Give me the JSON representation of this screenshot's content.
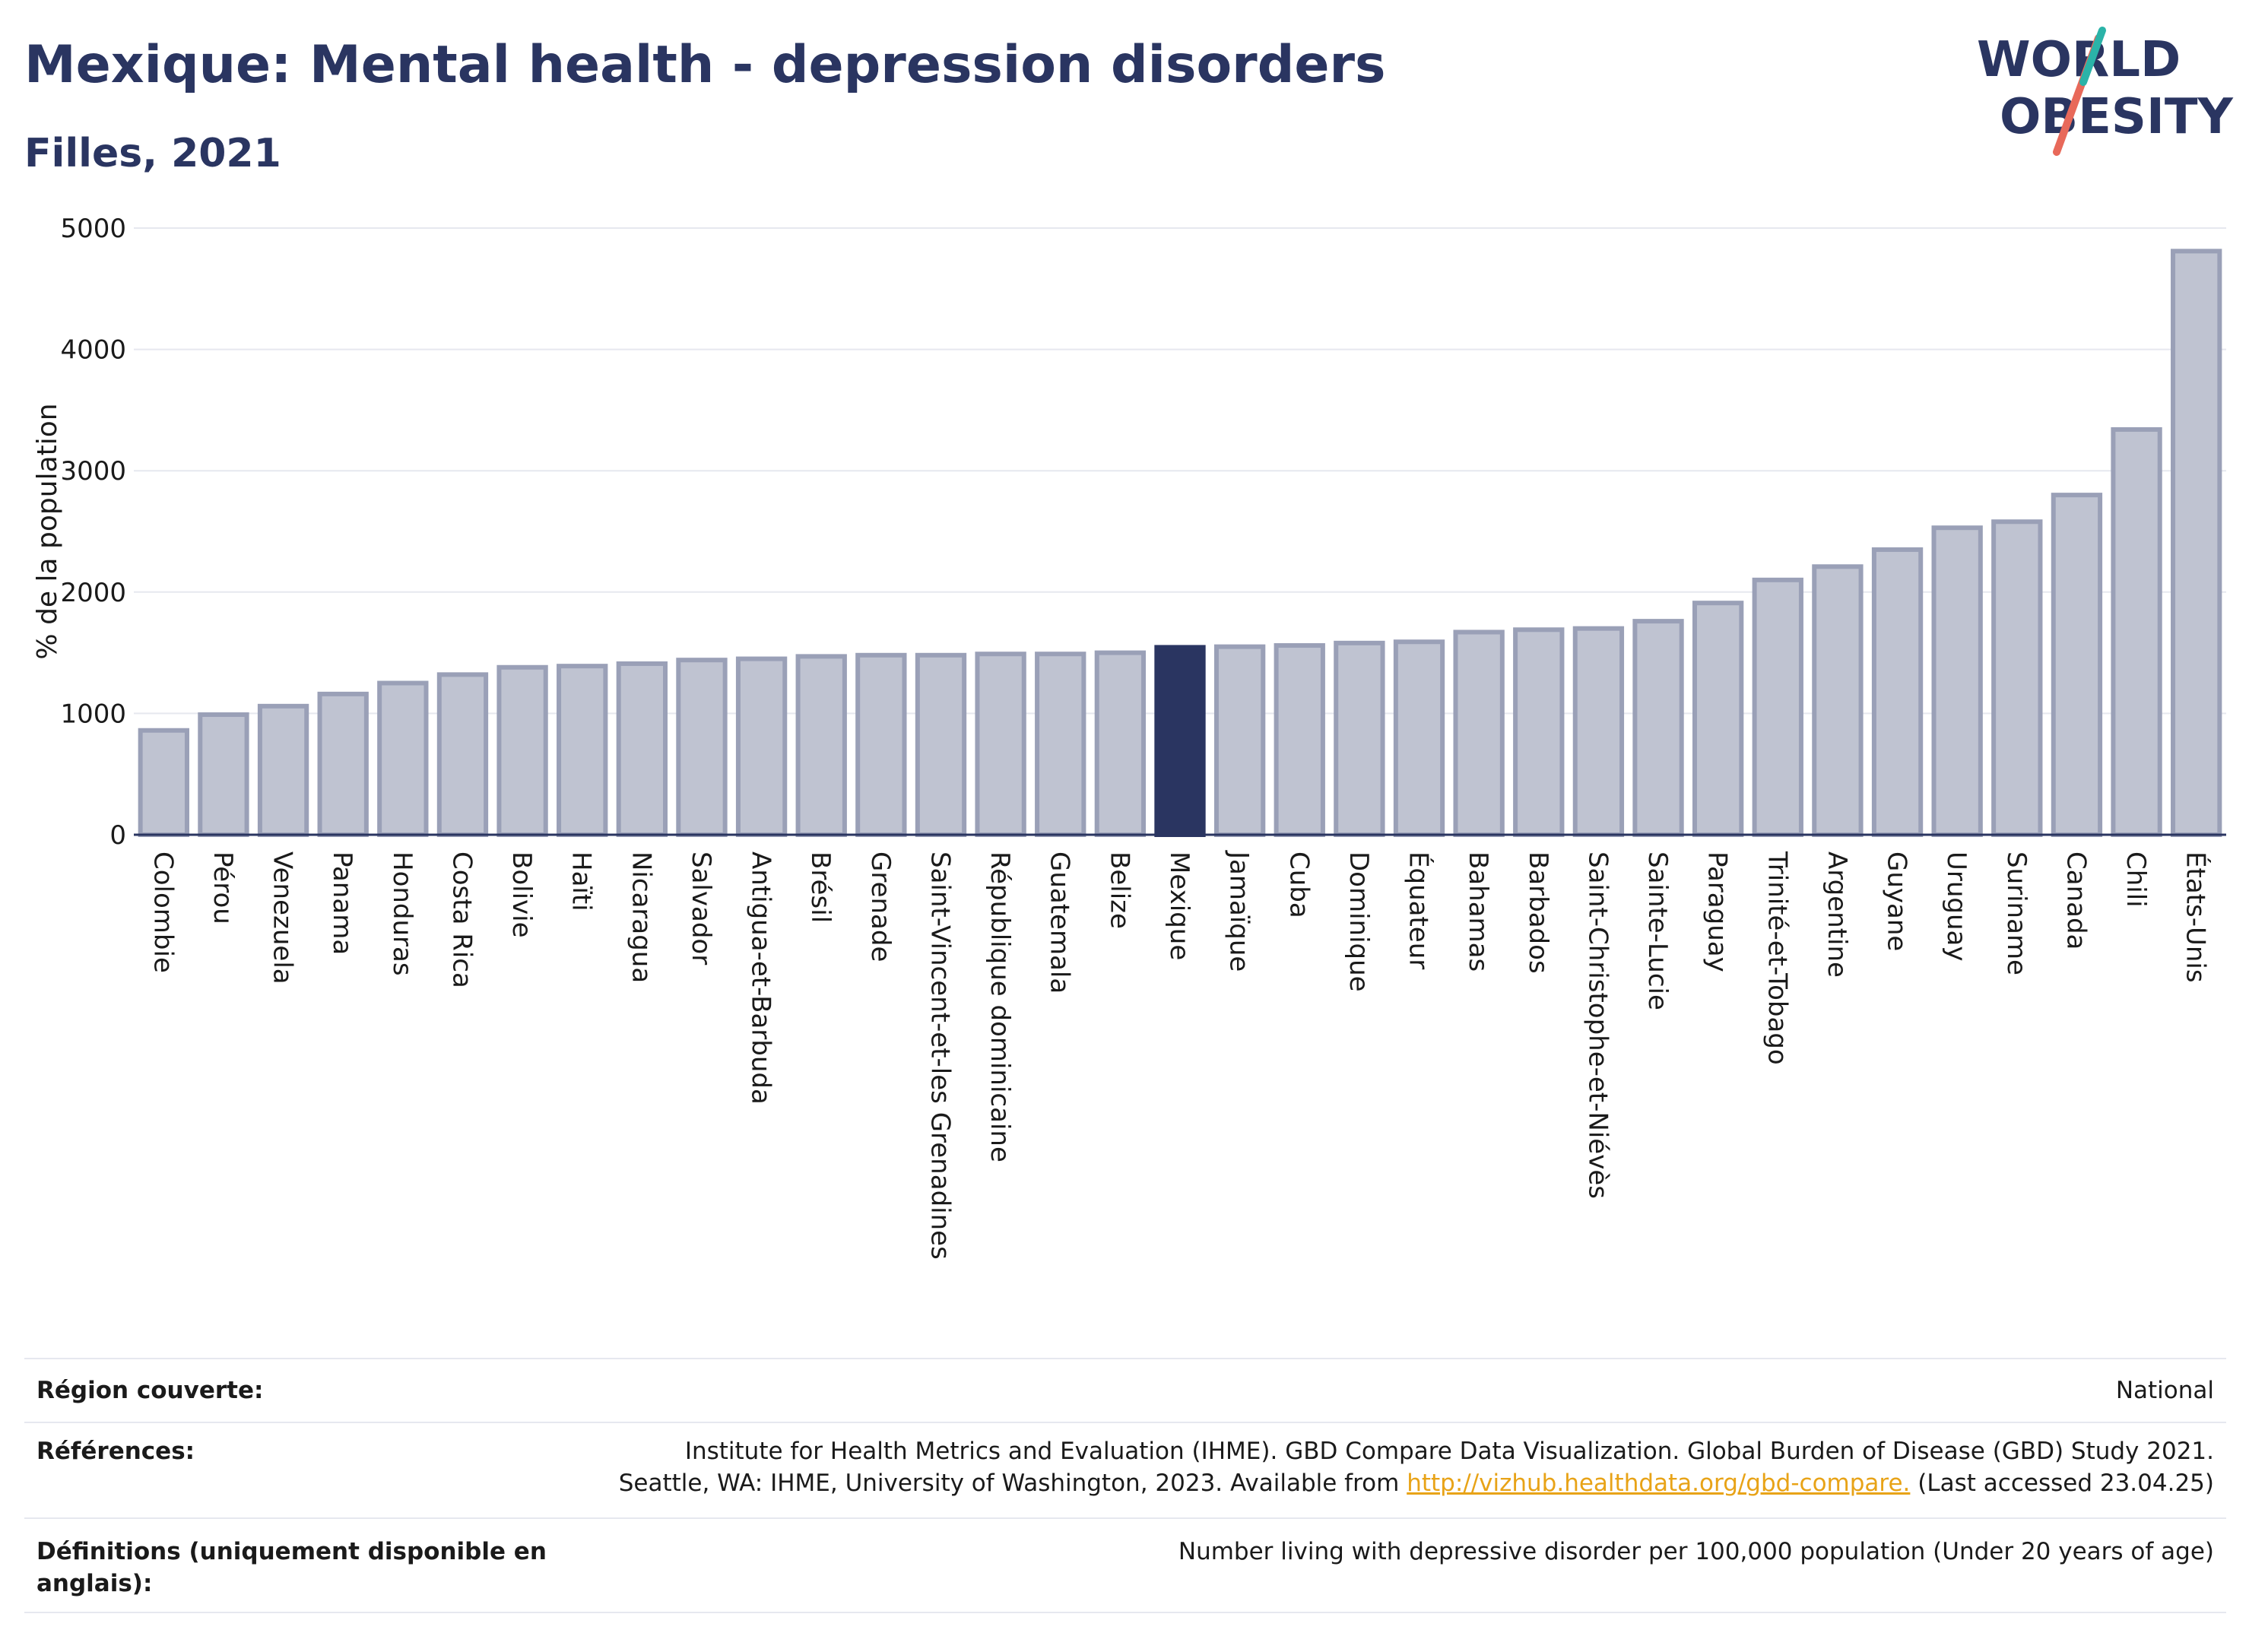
{
  "header": {
    "title": "Mexique: Mental health - depression disorders",
    "subtitle": "Filles, 2021"
  },
  "logo": {
    "line1": "WORLD",
    "line2": "OBESITY"
  },
  "chart_data": {
    "type": "bar",
    "ylabel": "% de la population",
    "xlabel": "",
    "ylim": [
      0,
      5000
    ],
    "yticks": [
      0,
      1000,
      2000,
      3000,
      4000,
      5000
    ],
    "grid": true,
    "highlight": "Mexique",
    "colors": {
      "bar": "#bfc3d1",
      "bar_border": "#9aa0b7",
      "highlight": "#2a3561",
      "grid": "#e6e8ef",
      "axis": "#2a3561"
    },
    "categories": [
      "Colombie",
      "Pérou",
      "Venezuela",
      "Panama",
      "Honduras",
      "Costa Rica",
      "Bolivie",
      "Haïti",
      "Nicaragua",
      "Salvador",
      "Antigua-et-Barbuda",
      "Brésil",
      "Grenade",
      "Saint-Vincent-et-les Grenadines",
      "République dominicaine",
      "Guatemala",
      "Belize",
      "Mexique",
      "Jamaïque",
      "Cuba",
      "Dominique",
      "Équateur",
      "Bahamas",
      "Barbados",
      "Saint-Christophe-et-Niévès",
      "Sainte-Lucie",
      "Paraguay",
      "Trinité-et-Tobago",
      "Argentine",
      "Guyane",
      "Uruguay",
      "Suriname",
      "Canada",
      "Chili",
      "États-Unis"
    ],
    "values": [
      860,
      990,
      1060,
      1160,
      1250,
      1320,
      1380,
      1390,
      1410,
      1440,
      1450,
      1470,
      1480,
      1480,
      1490,
      1490,
      1500,
      1545,
      1550,
      1560,
      1580,
      1590,
      1670,
      1690,
      1700,
      1760,
      1910,
      2100,
      2210,
      2350,
      2530,
      2580,
      2800,
      3340,
      4810
    ]
  },
  "info": {
    "region_label": "Région couverte:",
    "region_value": "National",
    "refs_label": "Références:",
    "refs_line1": "Institute for Health Metrics and Evaluation (IHME). GBD Compare Data Visualization. Global Burden of Disease (GBD) Study 2021.",
    "refs_line2_pre": "Seattle, WA: IHME, University of Washington, 2023. Available from",
    "refs_link": "http://vizhub.healthdata.org/gbd-compare.",
    "refs_line2_post": "(Last accessed 23.04.25)",
    "defs_label": "Définitions (uniquement disponible en anglais):",
    "defs_value": "Number living with depressive disorder per 100,000 population (Under 20 years of age)"
  }
}
